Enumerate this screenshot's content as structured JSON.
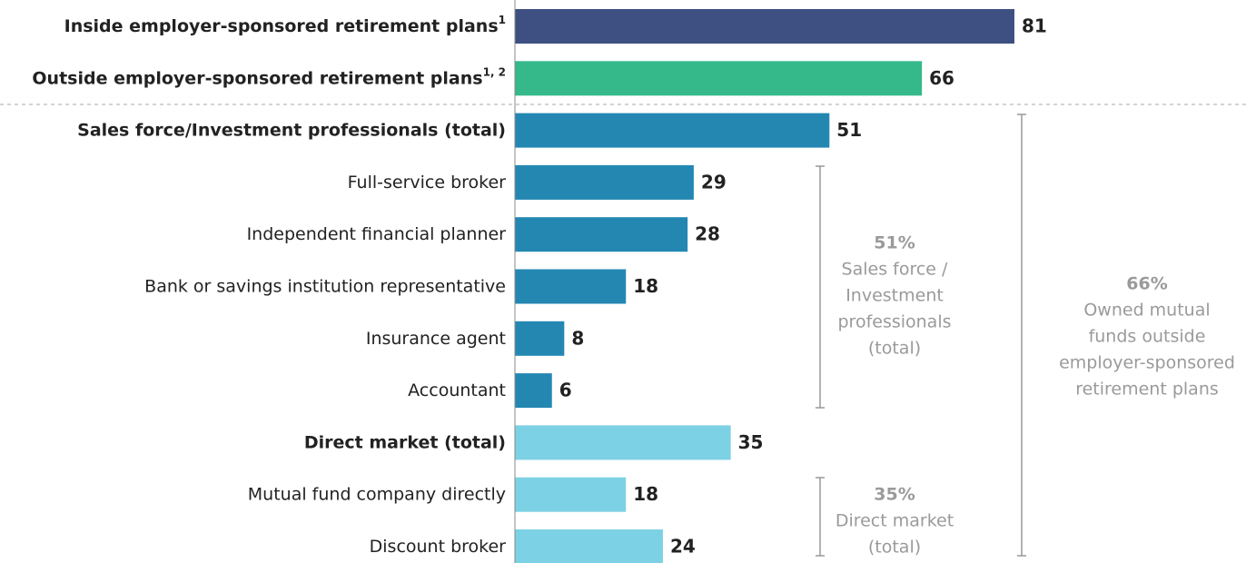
{
  "chart_data": {
    "type": "bar",
    "orientation": "horizontal",
    "categories": [
      "Inside employer-sponsored retirement plans",
      "Outside employer-sponsored retirement plans",
      "Sales force/Investment professionals (total)",
      "Full-service broker",
      "Independent financial planner",
      "Bank or savings institution representative",
      "Insurance agent",
      "Accountant",
      "Direct market (total)",
      "Mutual fund company directly",
      "Discount broker"
    ],
    "category_notes": [
      "1",
      "1, 2",
      null,
      null,
      null,
      null,
      null,
      null,
      null,
      null,
      null
    ],
    "values": [
      81,
      66,
      51,
      29,
      28,
      18,
      8,
      6,
      35,
      18,
      24
    ],
    "colors": [
      "#3d5081",
      "#35b98a",
      "#2387b2",
      "#2387b2",
      "#2387b2",
      "#2387b2",
      "#2387b2",
      "#2387b2",
      "#7dd1e4",
      "#7dd1e4",
      "#7dd1e4"
    ],
    "xlim": [
      0,
      100
    ],
    "annotations": [
      {
        "title": "51%",
        "lines": [
          "Sales force /",
          "Investment",
          "professionals",
          "(total)"
        ]
      },
      {
        "title": "66%",
        "lines": [
          "Owned mutual",
          "funds outside",
          "employer-sponsored",
          "retirement plans"
        ]
      },
      {
        "title": "35%",
        "lines": [
          "Direct market",
          "(total)"
        ]
      }
    ]
  }
}
